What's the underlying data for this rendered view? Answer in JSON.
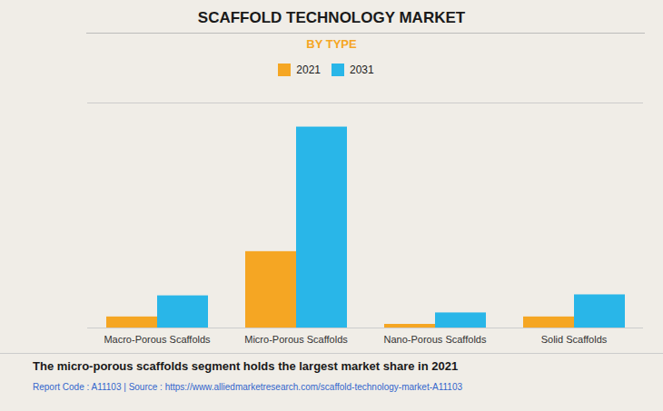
{
  "chart_data": {
    "type": "bar",
    "title": "SCAFFOLD TECHNOLOGY MARKET",
    "subtitle": "BY TYPE",
    "categories": [
      "Macro-Porous Scaffolds",
      "Micro-Porous Scaffolds",
      "Nano-Porous Scaffolds",
      "Solid Scaffolds"
    ],
    "series": [
      {
        "name": "2021",
        "color": "#F5A623",
        "values": [
          0.055,
          0.38,
          0.018,
          0.055
        ]
      },
      {
        "name": "2031",
        "color": "#29B6E8",
        "values": [
          0.16,
          1.0,
          0.075,
          0.165
        ]
      }
    ],
    "ylim": [
      0,
      1.12
    ],
    "yticks": [],
    "grid": false,
    "tick_labels": "x",
    "legend": "top",
    "annotations": [
      "The micro-porous scaffolds segment holds the largest market share in 2021",
      "Report Code : A11103  |  Source : https://www.alliedmarketresearch.com/scaffold-technology-market-A11103"
    ]
  }
}
